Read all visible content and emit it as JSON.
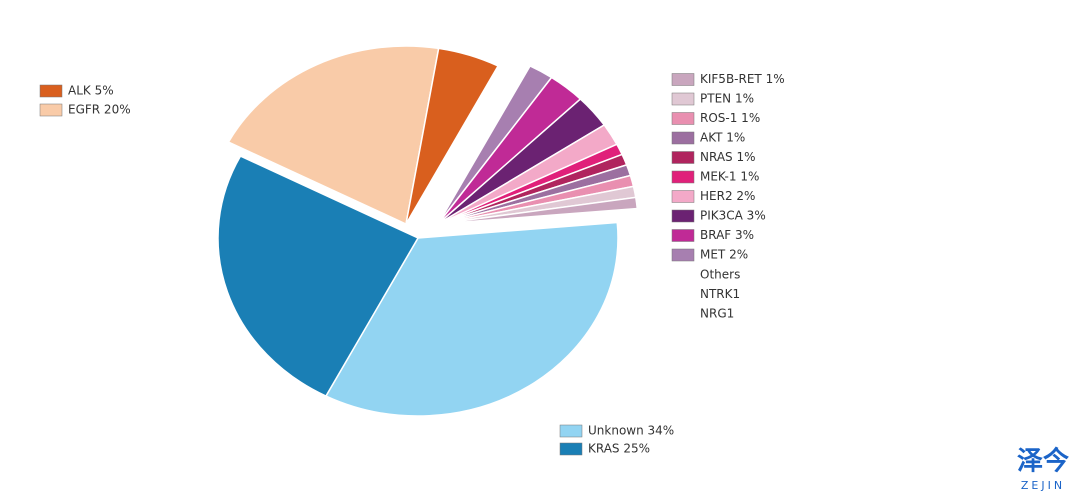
{
  "chart_data": {
    "type": "pie",
    "categories": [
      "Unknown 34%",
      "KRAS 25%",
      "EGFR 20%",
      "ALK 5%",
      "MET 2%",
      "BRAF 3%",
      "PIK3CA 3%",
      "HER2 2%",
      "MEK-1 1%",
      "NRAS 1%",
      "AKT 1%",
      "ROS-1 1%",
      "PTEN 1%",
      "KIF5B-RET 1%"
    ],
    "values": [
      34,
      25,
      20,
      5,
      2,
      3,
      3,
      2,
      1,
      1,
      1,
      1,
      1,
      1
    ],
    "colors": [
      "#92d4f2",
      "#1a7fb5",
      "#f9cba8",
      "#d95f1e",
      "#a77fb0",
      "#c02a96",
      "#6b2272",
      "#f3a9c8",
      "#e0207a",
      "#b0245e",
      "#9c6fa0",
      "#e98fb0",
      "#e0c8d4",
      "#c9a6be"
    ],
    "legend_extra": [
      "Others",
      "NTRK1",
      "NRG1"
    ]
  },
  "watermark": {
    "text": "泽今",
    "subtext": "ZEJIN"
  }
}
